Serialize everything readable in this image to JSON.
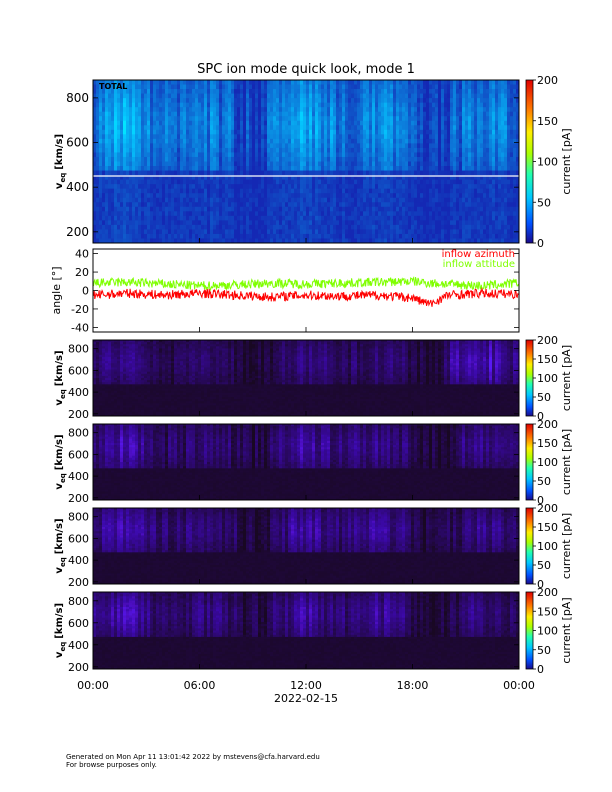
{
  "title": "SPC ion mode quick look, mode 1",
  "footer": {
    "line1": "Generated on Mon Apr 11 13:01:42 2022 by mstevens@cfa.harvard.edu",
    "line2": "For browse purposes only."
  },
  "chart_data": [
    {
      "type": "heatmap",
      "panel_label": "TOTAL",
      "ylabel_main": "v",
      "ylabel_sub": "eq",
      "ylabel_unit": "[km/s]",
      "ylim": [
        150,
        880
      ],
      "yticks": [
        200,
        400,
        600,
        800
      ],
      "colorbar_label": "current [pA]",
      "colorbar_range": [
        0,
        200
      ],
      "colorbar_ticks": [
        0,
        50,
        100,
        150,
        200
      ],
      "horizontal_line_y": 450
    },
    {
      "type": "line",
      "ylabel": "angle [°]",
      "ylim": [
        -45,
        45
      ],
      "yticks": [
        -40,
        -20,
        0,
        20,
        40
      ],
      "series": [
        {
          "name": "inflow azimuth",
          "color": "#ff0000",
          "x_hours": [
            0,
            2,
            4,
            6,
            8,
            10,
            12,
            14,
            16,
            18,
            19,
            20,
            22,
            24
          ],
          "values": [
            -5,
            -3,
            -5,
            -3,
            -5,
            -7,
            -5,
            -6,
            -5,
            -8,
            -15,
            -5,
            -3,
            -4
          ]
        },
        {
          "name": "inflow attitude",
          "color": "#7fff00",
          "x_hours": [
            0,
            2,
            4,
            6,
            8,
            10,
            12,
            14,
            16,
            18,
            19,
            20,
            22,
            24
          ],
          "values": [
            8,
            9,
            7,
            5,
            6,
            8,
            7,
            8,
            9,
            10,
            8,
            7,
            5,
            8
          ]
        }
      ]
    },
    {
      "type": "heatmap",
      "panel_label": "",
      "ylabel_main": "v",
      "ylabel_sub": "eq",
      "ylabel_unit": "[km/s]",
      "ylim": [
        180,
        880
      ],
      "yticks": [
        200,
        400,
        600,
        800
      ],
      "colorbar_label": "current [pA]",
      "colorbar_range": [
        0,
        200
      ],
      "colorbar_ticks": [
        0,
        50,
        100,
        150,
        200
      ]
    },
    {
      "type": "heatmap",
      "panel_label": "",
      "ylabel_main": "v",
      "ylabel_sub": "eq",
      "ylabel_unit": "[km/s]",
      "ylim": [
        180,
        880
      ],
      "yticks": [
        200,
        400,
        600,
        800
      ],
      "colorbar_label": "current [pA]",
      "colorbar_range": [
        0,
        200
      ],
      "colorbar_ticks": [
        0,
        50,
        100,
        150,
        200
      ]
    },
    {
      "type": "heatmap",
      "panel_label": "",
      "ylabel_main": "v",
      "ylabel_sub": "eq",
      "ylabel_unit": "[km/s]",
      "ylim": [
        180,
        880
      ],
      "yticks": [
        200,
        400,
        600,
        800
      ],
      "colorbar_label": "current [pA]",
      "colorbar_range": [
        0,
        200
      ],
      "colorbar_ticks": [
        0,
        50,
        100,
        150,
        200
      ]
    },
    {
      "type": "heatmap",
      "panel_label": "",
      "ylabel_main": "v",
      "ylabel_sub": "eq",
      "ylabel_unit": "[km/s]",
      "ylim": [
        180,
        880
      ],
      "yticks": [
        200,
        400,
        600,
        800
      ],
      "colorbar_label": "current [pA]",
      "colorbar_range": [
        0,
        200
      ],
      "colorbar_ticks": [
        0,
        50,
        100,
        150,
        200
      ]
    }
  ],
  "x_axis": {
    "ticks": [
      "00:00",
      "06:00",
      "12:00",
      "18:00",
      "00:00"
    ],
    "tick_hours": [
      0,
      6,
      12,
      18,
      24
    ],
    "date_label": "2022-02-15"
  }
}
